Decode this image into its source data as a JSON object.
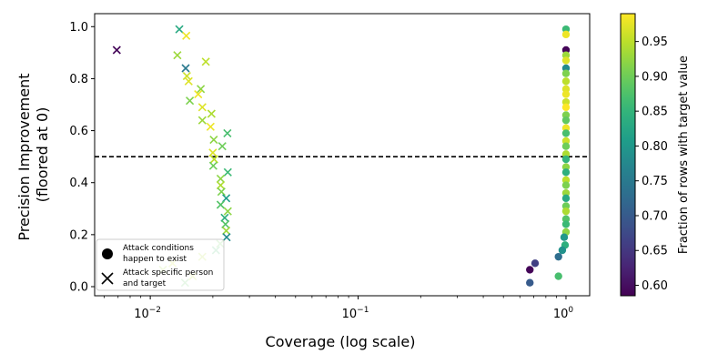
{
  "chart_data": {
    "type": "scatter",
    "xlabel": "Coverage (log scale)",
    "ylabel_lines": [
      "Precision Improvement",
      "(floored at 0)"
    ],
    "xscale": "log",
    "xlim": [
      0.0054,
      1.3
    ],
    "ylim": [
      -0.035,
      1.05
    ],
    "x_ticks": [
      {
        "value": 0.01,
        "base": "10",
        "exp": "−2"
      },
      {
        "value": 0.1,
        "base": "10",
        "exp": "−1"
      },
      {
        "value": 1,
        "base": "10",
        "exp": "0"
      }
    ],
    "y_ticks": [
      {
        "value": 0.0,
        "label": "0.0"
      },
      {
        "value": 0.2,
        "label": "0.2"
      },
      {
        "value": 0.4,
        "label": "0.4"
      },
      {
        "value": 0.6,
        "label": "0.6"
      },
      {
        "value": 0.8,
        "label": "0.8"
      },
      {
        "value": 1.0,
        "label": "1.0"
      }
    ],
    "reference_line": {
      "y": 0.5,
      "style": "dashed",
      "color": "#000000"
    },
    "colorbar": {
      "label": "Fraction of rows with target value",
      "min": 0.585,
      "max": 0.99,
      "ticks": [
        {
          "value": 0.6,
          "label": "0.60"
        },
        {
          "value": 0.65,
          "label": "0.65"
        },
        {
          "value": 0.7,
          "label": "0.70"
        },
        {
          "value": 0.75,
          "label": "0.75"
        },
        {
          "value": 0.8,
          "label": "0.80"
        },
        {
          "value": 0.85,
          "label": "0.85"
        },
        {
          "value": 0.9,
          "label": "0.90"
        },
        {
          "value": 0.95,
          "label": "0.95"
        }
      ],
      "colormap": "viridis"
    },
    "legend": {
      "placement": "lower-left",
      "entries": [
        {
          "marker": "circle",
          "lines": [
            "Attack conditions",
            "happen to exist"
          ]
        },
        {
          "marker": "x",
          "lines": [
            "Attack specific person",
            "and target"
          ]
        }
      ]
    },
    "series": [
      {
        "marker": "circle",
        "points": [
          {
            "x": 1.0,
            "y": 0.99,
            "c": 0.86
          },
          {
            "x": 1.0,
            "y": 0.97,
            "c": 0.98
          },
          {
            "x": 1.0,
            "y": 0.91,
            "c": 0.59
          },
          {
            "x": 1.0,
            "y": 0.89,
            "c": 0.93
          },
          {
            "x": 1.0,
            "y": 0.87,
            "c": 0.97
          },
          {
            "x": 1.0,
            "y": 0.84,
            "c": 0.78
          },
          {
            "x": 1.0,
            "y": 0.82,
            "c": 0.91
          },
          {
            "x": 1.0,
            "y": 0.79,
            "c": 0.95
          },
          {
            "x": 1.0,
            "y": 0.76,
            "c": 0.97
          },
          {
            "x": 1.0,
            "y": 0.74,
            "c": 0.98
          },
          {
            "x": 1.0,
            "y": 0.71,
            "c": 0.96
          },
          {
            "x": 1.0,
            "y": 0.69,
            "c": 0.99
          },
          {
            "x": 1.0,
            "y": 0.66,
            "c": 0.91
          },
          {
            "x": 1.0,
            "y": 0.64,
            "c": 0.89
          },
          {
            "x": 1.0,
            "y": 0.61,
            "c": 0.98
          },
          {
            "x": 1.0,
            "y": 0.59,
            "c": 0.87
          },
          {
            "x": 1.0,
            "y": 0.56,
            "c": 0.96
          },
          {
            "x": 1.0,
            "y": 0.54,
            "c": 0.9
          },
          {
            "x": 1.0,
            "y": 0.51,
            "c": 0.94
          },
          {
            "x": 1.0,
            "y": 0.49,
            "c": 0.85
          },
          {
            "x": 1.0,
            "y": 0.46,
            "c": 0.92
          },
          {
            "x": 1.0,
            "y": 0.44,
            "c": 0.84
          },
          {
            "x": 1.0,
            "y": 0.41,
            "c": 0.95
          },
          {
            "x": 1.0,
            "y": 0.39,
            "c": 0.91
          },
          {
            "x": 1.0,
            "y": 0.36,
            "c": 0.93
          },
          {
            "x": 1.0,
            "y": 0.34,
            "c": 0.83
          },
          {
            "x": 1.0,
            "y": 0.31,
            "c": 0.9
          },
          {
            "x": 1.0,
            "y": 0.29,
            "c": 0.94
          },
          {
            "x": 1.0,
            "y": 0.26,
            "c": 0.88
          },
          {
            "x": 1.0,
            "y": 0.24,
            "c": 0.86
          },
          {
            "x": 1.0,
            "y": 0.21,
            "c": 0.92
          },
          {
            "x": 0.98,
            "y": 0.19,
            "c": 0.8
          },
          {
            "x": 0.99,
            "y": 0.16,
            "c": 0.84
          },
          {
            "x": 0.96,
            "y": 0.14,
            "c": 0.79
          },
          {
            "x": 0.92,
            "y": 0.115,
            "c": 0.73
          },
          {
            "x": 0.71,
            "y": 0.09,
            "c": 0.66
          },
          {
            "x": 0.67,
            "y": 0.065,
            "c": 0.59
          },
          {
            "x": 0.92,
            "y": 0.04,
            "c": 0.87
          },
          {
            "x": 0.67,
            "y": 0.015,
            "c": 0.7
          }
        ]
      },
      {
        "marker": "x",
        "points": [
          {
            "x": 0.0069,
            "y": 0.91,
            "c": 0.59
          },
          {
            "x": 0.0138,
            "y": 0.99,
            "c": 0.83
          },
          {
            "x": 0.0149,
            "y": 0.965,
            "c": 0.98
          },
          {
            "x": 0.0135,
            "y": 0.89,
            "c": 0.93
          },
          {
            "x": 0.0185,
            "y": 0.865,
            "c": 0.95
          },
          {
            "x": 0.0148,
            "y": 0.84,
            "c": 0.75
          },
          {
            "x": 0.015,
            "y": 0.81,
            "c": 0.96
          },
          {
            "x": 0.0153,
            "y": 0.79,
            "c": 0.97
          },
          {
            "x": 0.0175,
            "y": 0.76,
            "c": 0.92
          },
          {
            "x": 0.017,
            "y": 0.74,
            "c": 0.98
          },
          {
            "x": 0.0155,
            "y": 0.715,
            "c": 0.91
          },
          {
            "x": 0.0178,
            "y": 0.69,
            "c": 0.97
          },
          {
            "x": 0.0197,
            "y": 0.665,
            "c": 0.94
          },
          {
            "x": 0.0178,
            "y": 0.64,
            "c": 0.93
          },
          {
            "x": 0.0195,
            "y": 0.615,
            "c": 0.98
          },
          {
            "x": 0.0235,
            "y": 0.59,
            "c": 0.87
          },
          {
            "x": 0.0202,
            "y": 0.565,
            "c": 0.92
          },
          {
            "x": 0.0222,
            "y": 0.54,
            "c": 0.9
          },
          {
            "x": 0.02,
            "y": 0.515,
            "c": 0.97
          },
          {
            "x": 0.0203,
            "y": 0.49,
            "c": 0.95
          },
          {
            "x": 0.0201,
            "y": 0.465,
            "c": 0.9
          },
          {
            "x": 0.0236,
            "y": 0.44,
            "c": 0.86
          },
          {
            "x": 0.0218,
            "y": 0.415,
            "c": 0.92
          },
          {
            "x": 0.0218,
            "y": 0.39,
            "c": 0.94
          },
          {
            "x": 0.022,
            "y": 0.365,
            "c": 0.91
          },
          {
            "x": 0.0232,
            "y": 0.34,
            "c": 0.81
          },
          {
            "x": 0.0218,
            "y": 0.315,
            "c": 0.88
          },
          {
            "x": 0.0236,
            "y": 0.29,
            "c": 0.92
          },
          {
            "x": 0.0228,
            "y": 0.265,
            "c": 0.84
          },
          {
            "x": 0.023,
            "y": 0.24,
            "c": 0.88
          },
          {
            "x": 0.0232,
            "y": 0.215,
            "c": 0.93
          },
          {
            "x": 0.0233,
            "y": 0.19,
            "c": 0.78
          },
          {
            "x": 0.0217,
            "y": 0.165,
            "c": 0.9
          },
          {
            "x": 0.0207,
            "y": 0.14,
            "c": 0.87
          },
          {
            "x": 0.0178,
            "y": 0.115,
            "c": 0.94
          },
          {
            "x": 0.0128,
            "y": 0.09,
            "c": 0.96
          },
          {
            "x": 0.0115,
            "y": 0.065,
            "c": 0.93
          },
          {
            "x": 0.016,
            "y": 0.04,
            "c": 0.95
          },
          {
            "x": 0.0147,
            "y": 0.015,
            "c": 0.89
          }
        ]
      }
    ]
  }
}
